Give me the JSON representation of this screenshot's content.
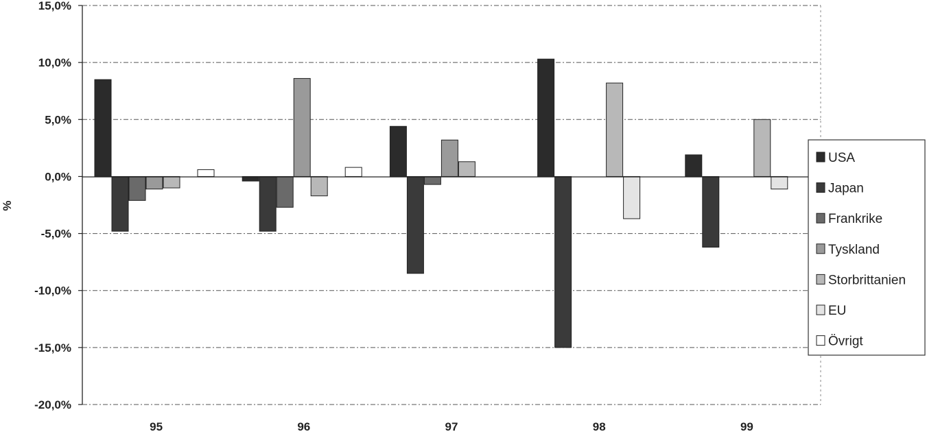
{
  "chart_data": {
    "type": "bar",
    "title": "",
    "xlabel": "",
    "ylabel": "%",
    "ylim": [
      -20,
      15
    ],
    "yticks": [
      15,
      10,
      5,
      0,
      -5,
      -10,
      -15,
      -20
    ],
    "ytick_labels": [
      "15,0%",
      "10,0%",
      "5,0%",
      "0,0%",
      "-5,0%",
      "-10,0%",
      "-15,0%",
      "-20,0%"
    ],
    "grid": true,
    "legend_position": "right",
    "categories": [
      "95",
      "96",
      "97",
      "98",
      "99"
    ],
    "series": [
      {
        "name": "USA",
        "color": "#2b2b2b",
        "values": [
          8.5,
          -0.4,
          4.4,
          10.3,
          1.9
        ]
      },
      {
        "name": "Japan",
        "color": "#3a3a3a",
        "values": [
          -4.8,
          -4.8,
          -8.5,
          -15.0,
          -6.2
        ]
      },
      {
        "name": "Frankrike",
        "color": "#6a6a6a",
        "values": [
          -2.1,
          -2.7,
          -0.7,
          0,
          0
        ]
      },
      {
        "name": "Tyskland",
        "color": "#9a9a9a",
        "values": [
          -1.1,
          8.6,
          3.2,
          0,
          0
        ]
      },
      {
        "name": "Storbrittanien",
        "color": "#b8b8b8",
        "values": [
          -1.0,
          -1.7,
          1.3,
          8.2,
          5.0
        ]
      },
      {
        "name": "EU",
        "color": "#e4e4e4",
        "values": [
          0,
          0,
          0,
          -3.7,
          -1.1
        ]
      },
      {
        "name": "Övrigt",
        "color": "#ffffff",
        "values": [
          0.6,
          0.8,
          0,
          0,
          0
        ]
      }
    ]
  }
}
